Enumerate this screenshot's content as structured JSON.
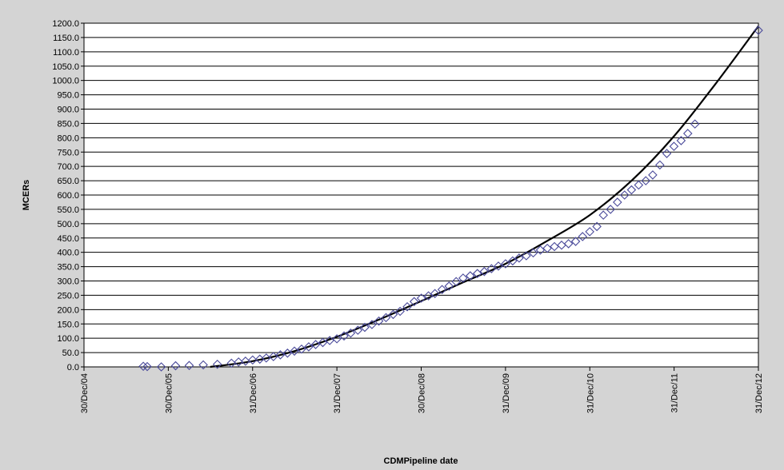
{
  "chart_data": {
    "type": "scatter",
    "title": "",
    "xlabel": "CDMPipeline date",
    "ylabel": "MCERs",
    "ylim": [
      0,
      1200
    ],
    "y_ticks": [
      "0.0",
      "50.0",
      "100.0",
      "150.0",
      "200.0",
      "250.0",
      "300.0",
      "350.0",
      "400.0",
      "450.0",
      "500.0",
      "550.0",
      "600.0",
      "650.0",
      "700.0",
      "750.0",
      "800.0",
      "850.0",
      "900.0",
      "950.0",
      "1000.0",
      "1050.0",
      "1100.0",
      "1150.0",
      "1200.0"
    ],
    "x_ticks": [
      "30/Dec/04",
      "30/Dec/05",
      "31/Dec/06",
      "31/Dec/07",
      "30/Dec/08",
      "31/Dec/09",
      "31/Dec/10",
      "31/Dec/11",
      "31/Dec/12"
    ],
    "xlim": [
      "2004-12-30",
      "2012-12-31"
    ],
    "grid": "horizontal",
    "legend": "none",
    "colors": {
      "markers": "#4a4a9a",
      "trend": "#000000",
      "plot_bg": "#ffffff",
      "frame_bg": "#d4d4d4"
    },
    "series": [
      {
        "marker": "diamond",
        "points": [
          {
            "x": "2005-09-13",
            "y": 2
          },
          {
            "x": "2005-09-30",
            "y": 1
          },
          {
            "x": "2005-11-30",
            "y": 0
          },
          {
            "x": "2006-01-31",
            "y": 4
          },
          {
            "x": "2006-03-31",
            "y": 5
          },
          {
            "x": "2006-05-31",
            "y": 7
          },
          {
            "x": "2006-07-31",
            "y": 9
          },
          {
            "x": "2006-09-30",
            "y": 13
          },
          {
            "x": "2006-10-31",
            "y": 17
          },
          {
            "x": "2006-11-30",
            "y": 20
          },
          {
            "x": "2006-12-31",
            "y": 24
          },
          {
            "x": "2007-01-31",
            "y": 27
          },
          {
            "x": "2007-02-28",
            "y": 31
          },
          {
            "x": "2007-03-31",
            "y": 36
          },
          {
            "x": "2007-04-30",
            "y": 42
          },
          {
            "x": "2007-05-31",
            "y": 48
          },
          {
            "x": "2007-06-30",
            "y": 55
          },
          {
            "x": "2007-07-31",
            "y": 62
          },
          {
            "x": "2007-08-31",
            "y": 70
          },
          {
            "x": "2007-09-30",
            "y": 78
          },
          {
            "x": "2007-10-31",
            "y": 85
          },
          {
            "x": "2007-11-30",
            "y": 92
          },
          {
            "x": "2007-12-31",
            "y": 98
          },
          {
            "x": "2008-01-31",
            "y": 108
          },
          {
            "x": "2008-02-29",
            "y": 118
          },
          {
            "x": "2008-03-31",
            "y": 128
          },
          {
            "x": "2008-04-30",
            "y": 138
          },
          {
            "x": "2008-05-31",
            "y": 148
          },
          {
            "x": "2008-06-30",
            "y": 160
          },
          {
            "x": "2008-07-31",
            "y": 172
          },
          {
            "x": "2008-08-31",
            "y": 183
          },
          {
            "x": "2008-09-30",
            "y": 194
          },
          {
            "x": "2008-10-31",
            "y": 210
          },
          {
            "x": "2008-11-30",
            "y": 228
          },
          {
            "x": "2008-12-31",
            "y": 240
          },
          {
            "x": "2009-01-31",
            "y": 248
          },
          {
            "x": "2009-02-28",
            "y": 256
          },
          {
            "x": "2009-03-31",
            "y": 270
          },
          {
            "x": "2009-04-30",
            "y": 282
          },
          {
            "x": "2009-05-31",
            "y": 298
          },
          {
            "x": "2009-06-30",
            "y": 310
          },
          {
            "x": "2009-07-31",
            "y": 318
          },
          {
            "x": "2009-08-31",
            "y": 326
          },
          {
            "x": "2009-09-30",
            "y": 333
          },
          {
            "x": "2009-10-31",
            "y": 343
          },
          {
            "x": "2009-11-30",
            "y": 352
          },
          {
            "x": "2009-12-31",
            "y": 360
          },
          {
            "x": "2010-01-31",
            "y": 370
          },
          {
            "x": "2010-02-28",
            "y": 380
          },
          {
            "x": "2010-03-31",
            "y": 388
          },
          {
            "x": "2010-04-30",
            "y": 398
          },
          {
            "x": "2010-05-31",
            "y": 408
          },
          {
            "x": "2010-06-30",
            "y": 414
          },
          {
            "x": "2010-07-31",
            "y": 420
          },
          {
            "x": "2010-08-31",
            "y": 425
          },
          {
            "x": "2010-09-30",
            "y": 430
          },
          {
            "x": "2010-10-31",
            "y": 438
          },
          {
            "x": "2010-11-30",
            "y": 455
          },
          {
            "x": "2010-12-31",
            "y": 472
          },
          {
            "x": "2011-01-31",
            "y": 490
          },
          {
            "x": "2011-02-28",
            "y": 530
          },
          {
            "x": "2011-03-31",
            "y": 550
          },
          {
            "x": "2011-04-30",
            "y": 575
          },
          {
            "x": "2011-05-31",
            "y": 600
          },
          {
            "x": "2011-06-30",
            "y": 618
          },
          {
            "x": "2011-07-31",
            "y": 635
          },
          {
            "x": "2011-08-31",
            "y": 650
          },
          {
            "x": "2011-09-30",
            "y": 670
          },
          {
            "x": "2011-10-31",
            "y": 705
          },
          {
            "x": "2011-11-30",
            "y": 745
          },
          {
            "x": "2011-12-31",
            "y": 770
          },
          {
            "x": "2012-01-31",
            "y": 790
          },
          {
            "x": "2012-02-29",
            "y": 815
          },
          {
            "x": "2012-03-31",
            "y": 848
          },
          {
            "x": "2012-12-31",
            "y": 1175
          }
        ]
      }
    ],
    "trendline": {
      "type": "polynomial",
      "points": [
        {
          "x": "2006-06-30",
          "y": 0
        },
        {
          "x": "2006-12-31",
          "y": 20
        },
        {
          "x": "2007-06-30",
          "y": 55
        },
        {
          "x": "2007-12-31",
          "y": 105
        },
        {
          "x": "2008-06-30",
          "y": 165
        },
        {
          "x": "2008-12-31",
          "y": 230
        },
        {
          "x": "2009-06-30",
          "y": 295
        },
        {
          "x": "2009-12-31",
          "y": 360
        },
        {
          "x": "2010-06-30",
          "y": 440
        },
        {
          "x": "2010-12-31",
          "y": 530
        },
        {
          "x": "2011-06-30",
          "y": 650
        },
        {
          "x": "2011-12-31",
          "y": 805
        },
        {
          "x": "2012-06-30",
          "y": 990
        },
        {
          "x": "2012-12-31",
          "y": 1190
        }
      ]
    }
  }
}
